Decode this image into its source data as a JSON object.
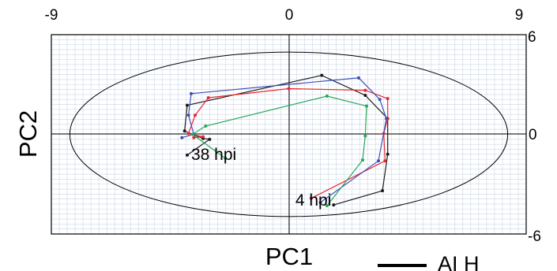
{
  "chart_data": {
    "type": "line",
    "title": "",
    "xlabel": "PC1",
    "ylabel": "PC2",
    "xlim": [
      -9,
      9
    ],
    "ylim": [
      -6,
      6
    ],
    "x_ticks": [
      "-9",
      "0",
      "9"
    ],
    "y_ticks": [
      "6",
      "0",
      "-6"
    ],
    "grid": true,
    "confidence_ellipse": {
      "center": [
        0,
        0
      ],
      "semi_x": 8.3,
      "semi_y": 4.95
    },
    "annotations": [
      {
        "text": "38 hpi",
        "x": -3.7,
        "y": -1.55
      },
      {
        "text": "4 hpi",
        "x": 0.25,
        "y": -4.3
      }
    ],
    "legend": {
      "entries": [
        "AI H"
      ]
    },
    "series": [
      {
        "color": "#1a1a1a",
        "x": [
          1.7,
          3.55,
          3.75,
          3.75,
          2.9,
          1.25,
          -3.85,
          -3.95,
          -3.25,
          -3.0,
          -3.85
        ],
        "y": [
          -4.25,
          -3.4,
          -1.2,
          0.95,
          2.35,
          3.55,
          1.75,
          0.2,
          -0.25,
          -0.3,
          -1.25
        ]
      },
      {
        "color": "#e8282f",
        "x": [
          0.85,
          3.65,
          3.6,
          3.75,
          3.75,
          2.9,
          0.0,
          -3.05,
          -3.55,
          -3.8,
          -3.25,
          -3.6
        ],
        "y": [
          -3.85,
          -1.6,
          0.05,
          0.95,
          2.15,
          2.65,
          2.75,
          2.2,
          1.15,
          0.05,
          -0.15,
          -0.2
        ]
      },
      {
        "color": "#3c4fb5",
        "x": [
          1.2,
          3.4,
          3.7,
          3.45,
          2.65,
          -3.7,
          -3.8,
          -3.6,
          -4.05
        ],
        "y": [
          -4.1,
          -1.6,
          0.95,
          2.1,
          3.4,
          2.45,
          1.15,
          0.0,
          -0.2
        ]
      },
      {
        "color": "#2aa55a",
        "x": [
          1.45,
          2.8,
          2.9,
          2.95,
          1.45,
          -3.15,
          -3.65,
          -2.4
        ],
        "y": [
          -4.3,
          -1.55,
          -0.1,
          1.7,
          2.3,
          0.5,
          0.0,
          -1.45
        ]
      }
    ]
  }
}
